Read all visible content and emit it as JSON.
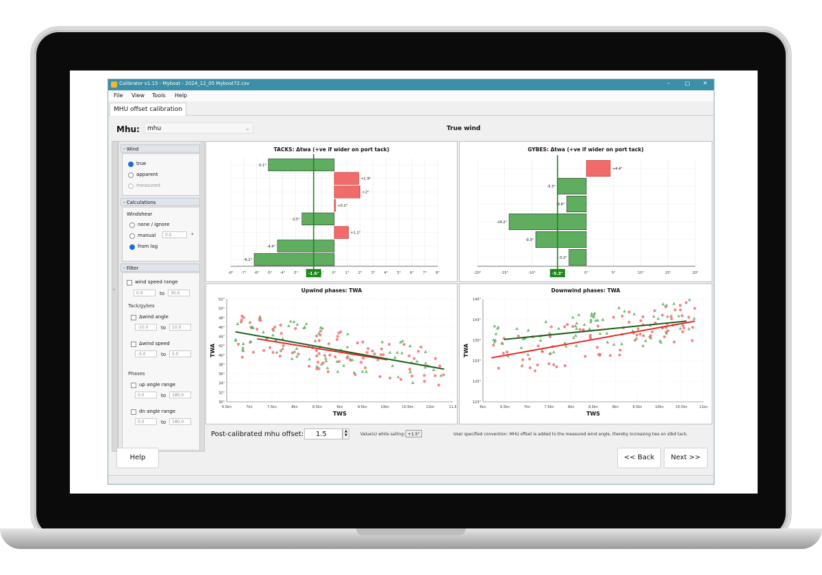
{
  "window": {
    "title": "Calibrator v1.15  -  Myboat  -  2024_12_05 Myboat72.csv",
    "controls": [
      "–",
      "□",
      "✕"
    ]
  },
  "menu": [
    "File",
    "View",
    "Tools",
    "Help"
  ],
  "tab": "MHU offset calibration",
  "mhu": {
    "label": "Mhu:",
    "selected": "mhu"
  },
  "panel_title": "True wind",
  "left_panel": {
    "wind": {
      "title": "- Wind",
      "options": [
        "true",
        "apparent",
        "measured"
      ],
      "selected": "true"
    },
    "calculations": {
      "title": "- Calculations",
      "windshear_label": "Windshear",
      "options": [
        "none / ignore",
        "manual",
        "from log"
      ],
      "selected": "from log",
      "manual_value": "0.0",
      "manual_unit": "°"
    },
    "filter": {
      "title": "- Filter",
      "wind_speed_range": {
        "label": "wind speed range",
        "from": "0.0",
        "to_label": "to",
        "to": "30.0"
      },
      "tack_gybes_label": "Tack/gybes",
      "dwind_angle": {
        "label": "Δwind angle",
        "from": "-10.0",
        "to_label": "to",
        "to": "10.0"
      },
      "dwind_speed": {
        "label": "Δwind speed",
        "from": "-5.0",
        "to_label": "to",
        "to": "5.0"
      },
      "phases_label": "Phases",
      "up_angle_range": {
        "label": "up angle range",
        "from": "0.0",
        "to_label": "to",
        "to": "180.0"
      },
      "dn_angle_range": {
        "label": "dn angle range",
        "from": "0.0",
        "to_label": "to",
        "to": "180.0"
      }
    }
  },
  "bottom": {
    "post_calibrated_label": "Post-calibrated mhu offset:",
    "post_calibrated_value": "1.5",
    "values_while_sailing_label": "Value(s) while sailing:",
    "values_while_sailing": "+1.5°",
    "note": "User specified convention: MHU offset is added to the measured wind angle, thereby increasing twa on stbd tack."
  },
  "buttons": {
    "help": "Help",
    "back": "<< Back",
    "next": "Next >>"
  },
  "colors": {
    "positive": "#f26b6b",
    "negative": "#5fae5f",
    "mean_line": "#1a8a1a",
    "red_trend": "#ee2222",
    "green_trend": "#1a5e1a"
  },
  "chart_data": [
    {
      "type": "bar",
      "title": "TACKS: Δtwa (+ve if wider on port tack)",
      "orientation": "horizontal",
      "values": [
        -5.1,
        1.9,
        2,
        0.1,
        -2.5,
        1.1,
        -4.4,
        -6.2
      ],
      "labels": [
        "-5.1°",
        "+1.9°",
        "+2°",
        "+0.1°",
        "-2.5°",
        "+1.1°",
        "-4.4°",
        "-6.2°"
      ],
      "xlim": [
        -8,
        8
      ],
      "xticks": [
        "-8°",
        "-7°",
        "-6°",
        "-5°",
        "-4°",
        "-3°",
        "-2°",
        "-1°",
        "0°",
        "1°",
        "2°",
        "3°",
        "4°",
        "5°",
        "6°",
        "7°",
        "8°"
      ],
      "mean": -1.6,
      "mean_label": "-1.6°"
    },
    {
      "type": "bar",
      "title": "GYBES: Δtwa (+ve if wider on port tack)",
      "orientation": "horizontal",
      "values": [
        4.4,
        -5.3,
        -3.6,
        -14.2,
        -9.3,
        -3.2
      ],
      "labels": [
        "+4.4°",
        "-5.3°",
        "-3.6°",
        "-14.2°",
        "-9.3°",
        "-3.2°"
      ],
      "xlim": [
        -20,
        20
      ],
      "xticks": [
        "-20°",
        "-15°",
        "-10°",
        "-5°",
        "0°",
        "5°",
        "10°",
        "15°",
        "20°"
      ],
      "mean": -5.3,
      "mean_label": "-5.3°"
    },
    {
      "type": "scatter",
      "title": "Upwind phases: TWA",
      "xlabel": "TWS",
      "ylabel": "TWA",
      "xlim": [
        6.3,
        11.5
      ],
      "ylim": [
        30,
        52
      ],
      "xticks": [
        "6.5kn",
        "7kn",
        "7.5kn",
        "8kn",
        "8.5kn",
        "9kn",
        "9.5kn",
        "10kn",
        "10.5kn",
        "11kn",
        "11.5"
      ],
      "yticks": [
        "52°",
        "50°",
        "48°",
        "46°",
        "44°",
        "42°",
        "40°",
        "38°",
        "36°",
        "34°",
        "32°",
        "30°"
      ],
      "trend_red": {
        "x": [
          7,
          10
        ],
        "y": [
          43.5,
          39
        ]
      },
      "trend_green": {
        "x": [
          6.5,
          11.3
        ],
        "y": [
          45,
          37
        ]
      }
    },
    {
      "type": "scatter",
      "title": "Downwind phases: TWA",
      "xlabel": "TWS",
      "ylabel": "TWA",
      "xlim": [
        6,
        11.2
      ],
      "ylim": [
        120,
        148
      ],
      "xticks": [
        "6kn",
        "6.5kn",
        "7kn",
        "7.5kn",
        "8kn",
        "8.5kn",
        "9kn",
        "9.5kn",
        "10kn",
        "10.5kn",
        "11kn"
      ],
      "yticks": [
        "145°",
        "143°",
        "135°",
        "133°",
        "125°",
        "123°"
      ],
      "trend_red": {
        "x": [
          6.2,
          11
        ],
        "y": [
          132,
          142
        ]
      },
      "trend_green": {
        "x": [
          6.5,
          10.8
        ],
        "y": [
          137,
          142
        ]
      }
    }
  ]
}
